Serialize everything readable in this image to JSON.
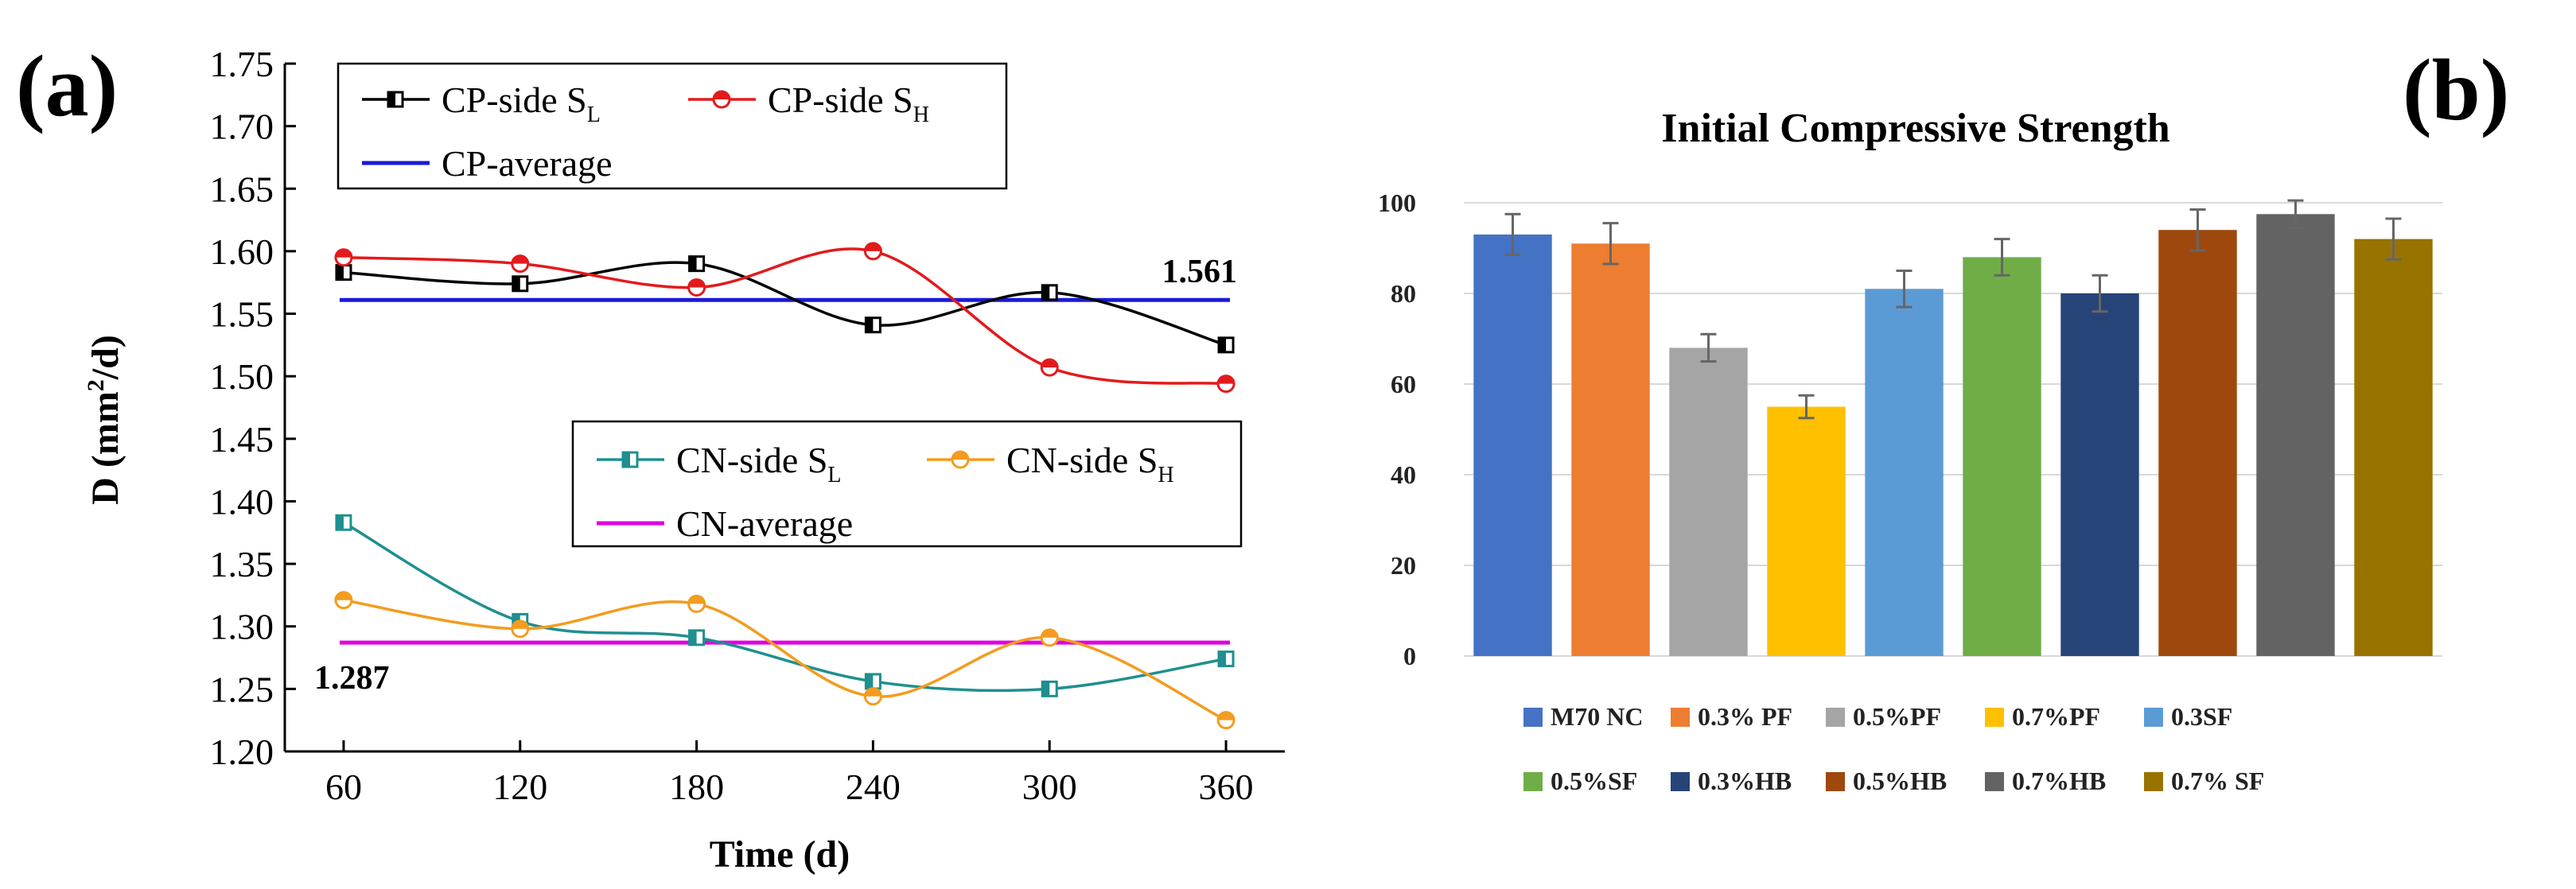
{
  "figure": {
    "panel_a_label": "(a)",
    "panel_b_label": "(b)"
  },
  "chart_data": [
    {
      "type": "line",
      "panel": "(a)",
      "xlabel": "Time (d)",
      "ylabel": "D (mm²/d)",
      "ylabel_parts": {
        "prefix": "D (mm",
        "sup": "2",
        "suffix": "/d)"
      },
      "x": [
        60,
        120,
        180,
        240,
        300,
        360
      ],
      "xlim": [
        40,
        380
      ],
      "ylim": [
        1.2,
        1.75
      ],
      "x_ticks": [
        "60",
        "120",
        "180",
        "240",
        "300",
        "360"
      ],
      "y_ticks": [
        "1.20",
        "1.25",
        "1.30",
        "1.35",
        "1.40",
        "1.45",
        "1.50",
        "1.55",
        "1.60",
        "1.65",
        "1.70",
        "1.75"
      ],
      "series": [
        {
          "name": "CP-side S_L",
          "legend_main": "CP-side S",
          "legend_sub": "L",
          "color": "#000000",
          "marker": "square-half",
          "values": [
            1.583,
            1.574,
            1.59,
            1.541,
            1.567,
            1.525
          ]
        },
        {
          "name": "CP-side S_H",
          "legend_main": "CP-side S",
          "legend_sub": "H",
          "color": "#e31a1c",
          "marker": "circle-half",
          "values": [
            1.595,
            1.59,
            1.571,
            1.6,
            1.507,
            1.494
          ]
        },
        {
          "name": "CN-side S_L",
          "legend_main": "CN-side S",
          "legend_sub": "L",
          "color": "#1f8f8f",
          "marker": "square-half",
          "values": [
            1.383,
            1.304,
            1.291,
            1.256,
            1.25,
            1.274
          ]
        },
        {
          "name": "CN-side S_H",
          "legend_main": "CN-side S",
          "legend_sub": "H",
          "color": "#f39c1f",
          "marker": "circle-half",
          "values": [
            1.321,
            1.298,
            1.318,
            1.244,
            1.291,
            1.225
          ]
        }
      ],
      "reference_lines": [
        {
          "name": "CP-average",
          "value": 1.561,
          "label": "1.561",
          "color": "#1a1ad6"
        },
        {
          "name": "CN-average",
          "value": 1.287,
          "label": "1.287",
          "color": "#e000e0"
        }
      ],
      "legends": [
        {
          "position": "top-center",
          "entries": [
            "CP-side S_L",
            "CP-side S_H",
            "CP-average"
          ]
        },
        {
          "position": "middle-right",
          "entries": [
            "CN-side S_L",
            "CN-side S_H",
            "CN-average"
          ]
        }
      ]
    },
    {
      "type": "bar",
      "panel": "(b)",
      "title": "Initial Compressive Strength",
      "xlabel": "",
      "ylabel": "",
      "ylim": [
        0,
        100
      ],
      "y_ticks": [
        "0",
        "20",
        "40",
        "60",
        "80",
        "100"
      ],
      "grid": true,
      "categories": [
        "M70 NC",
        "0.3% PF",
        "0.5%PF",
        "0.7%PF",
        "0.3SF",
        "0.5%SF",
        "0.3%HB",
        "0.5%HB",
        "0.7%HB",
        "0.7% SF"
      ],
      "values": [
        93,
        91,
        68,
        55,
        81,
        88,
        80,
        94,
        97.5,
        92
      ],
      "errors": [
        4.5,
        4.5,
        3,
        2.5,
        4,
        4,
        4,
        4.5,
        3,
        4.5
      ],
      "colors": [
        "#4472c4",
        "#ed7d31",
        "#a5a5a5",
        "#ffc000",
        "#5b9bd5",
        "#70ad47",
        "#264478",
        "#9e480e",
        "#636363",
        "#997300"
      ],
      "legend_position": "bottom"
    }
  ]
}
